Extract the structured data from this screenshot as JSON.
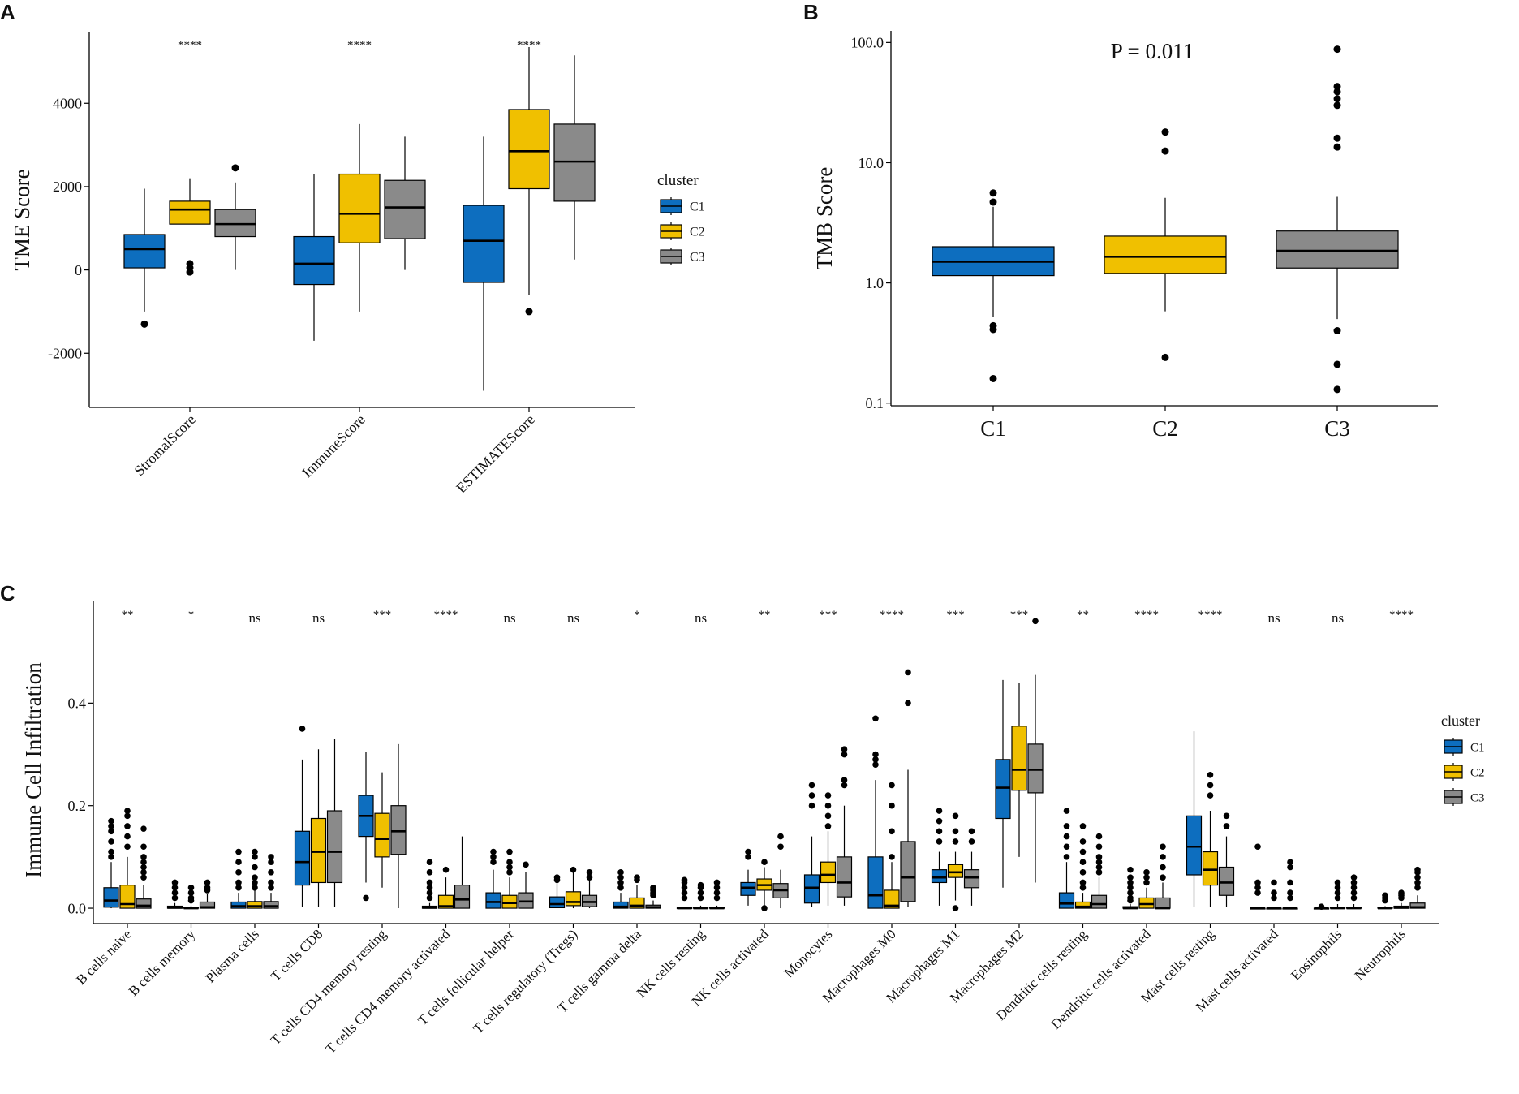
{
  "colors": {
    "C1": "#0d6ebf",
    "C2": "#f0c000",
    "C3": "#8a8a8a",
    "axis": "#000000"
  },
  "chart_data": [
    {
      "panel": "A",
      "type": "boxplot",
      "ylabel": "TME Score",
      "ylim": [
        -3300,
        5700
      ],
      "yticks": [
        -2000,
        0,
        2000,
        4000
      ],
      "ytick_labels": [
        "-2000",
        "0",
        "2000",
        "4000"
      ],
      "categories": [
        "StromalScore",
        "ImmuneScore",
        "ESTIMATEScore"
      ],
      "significance": [
        "****",
        "****",
        "****"
      ],
      "legend": {
        "title": "cluster",
        "entries": [
          "C1",
          "C2",
          "C3"
        ]
      },
      "groups": [
        [
          {
            "series": "C1",
            "whisker_low": -1000,
            "q1": 50,
            "median": 500,
            "q3": 850,
            "whisker_high": 1950,
            "outliers": [
              -1300
            ]
          },
          {
            "series": "C2",
            "whisker_low": 1100,
            "q1": 1100,
            "median": 1450,
            "q3": 1650,
            "whisker_high": 2200,
            "outliers": [
              150,
              50,
              -50
            ]
          },
          {
            "series": "C3",
            "whisker_low": 0,
            "q1": 800,
            "median": 1100,
            "q3": 1450,
            "whisker_high": 2100,
            "outliers": [
              2450
            ]
          }
        ],
        [
          {
            "series": "C1",
            "whisker_low": -1700,
            "q1": -350,
            "median": 150,
            "q3": 800,
            "whisker_high": 2300,
            "outliers": []
          },
          {
            "series": "C2",
            "whisker_low": -1000,
            "q1": 650,
            "median": 1350,
            "q3": 2300,
            "whisker_high": 3500,
            "outliers": []
          },
          {
            "series": "C3",
            "whisker_low": 0,
            "q1": 750,
            "median": 1500,
            "q3": 2150,
            "whisker_high": 3200,
            "outliers": []
          }
        ],
        [
          {
            "series": "C1",
            "whisker_low": -2900,
            "q1": -300,
            "median": 700,
            "q3": 1550,
            "whisker_high": 3200,
            "outliers": []
          },
          {
            "series": "C2",
            "whisker_low": -600,
            "q1": 1950,
            "median": 2850,
            "q3": 3850,
            "whisker_high": 5350,
            "outliers": [
              -1000
            ]
          },
          {
            "series": "C3",
            "whisker_low": 250,
            "q1": 1650,
            "median": 2600,
            "q3": 3500,
            "whisker_high": 5150,
            "outliers": []
          }
        ]
      ]
    },
    {
      "panel": "B",
      "type": "boxplot",
      "yscale": "log",
      "ylabel": "TMB Score",
      "ylim": [
        0.095,
        125
      ],
      "yticks": [
        0.1,
        1.0,
        10.0,
        100.0
      ],
      "ytick_labels": [
        "0.1",
        "1.0",
        "10.0",
        "100.0"
      ],
      "categories": [
        "C1",
        "C2",
        "C3"
      ],
      "annotation": "P = 0.011",
      "boxes": [
        {
          "series": "C1",
          "whisker_low": 0.52,
          "q1": 1.15,
          "median": 1.5,
          "q3": 2.0,
          "whisker_high": 4.3,
          "outliers": [
            5.6,
            4.7,
            0.44,
            0.41,
            0.16
          ]
        },
        {
          "series": "C2",
          "whisker_low": 0.58,
          "q1": 1.2,
          "median": 1.65,
          "q3": 2.45,
          "whisker_high": 5.1,
          "outliers": [
            18,
            12.5,
            0.24
          ]
        },
        {
          "series": "C3",
          "whisker_low": 0.5,
          "q1": 1.33,
          "median": 1.85,
          "q3": 2.7,
          "whisker_high": 5.2,
          "outliers": [
            88,
            43,
            39,
            34,
            30,
            16,
            13.5,
            0.4,
            0.21,
            0.13
          ]
        }
      ]
    },
    {
      "panel": "C",
      "type": "boxplot",
      "ylabel": "Immune Cell Infiltration",
      "ylim": [
        -0.03,
        0.6
      ],
      "yticks": [
        0.0,
        0.2,
        0.4
      ],
      "ytick_labels": [
        "0.0",
        "0.2",
        "0.4"
      ],
      "categories": [
        "B cells naive",
        "B cells memory",
        "Plasma cells",
        "T cells CD8",
        "T cells CD4 memory resting",
        "T cells CD4 memory activated",
        "T cells follicular helper",
        "T cells regulatory (Tregs)",
        "T cells gamma delta",
        "NK cells resting",
        "NK cells activated",
        "Monocytes",
        "Macrophages M0",
        "Macrophages M1",
        "Macrophages M2",
        "Dendritic cells resting",
        "Dendritic cells activated",
        "Mast cells resting",
        "Mast cells activated",
        "Eosinophils",
        "Neutrophils"
      ],
      "significance": [
        "**",
        "*",
        "ns",
        "ns",
        "***",
        "****",
        "ns",
        "ns",
        "*",
        "ns",
        "**",
        "***",
        "****",
        "***",
        "***",
        "**",
        "****",
        "****",
        "ns",
        "ns",
        "****"
      ],
      "legend": {
        "title": "cluster",
        "entries": [
          "C1",
          "C2",
          "C3"
        ]
      },
      "groups": [
        [
          [
            0,
            0.002,
            0.015,
            0.04,
            0.09,
            [
              0.17,
              0.16,
              0.15,
              0.13,
              0.11,
              0.1
            ]
          ],
          [
            0,
            0,
            0.008,
            0.045,
            0.1,
            [
              0.19,
              0.18,
              0.16,
              0.14,
              0.12
            ]
          ],
          [
            0,
            0,
            0.005,
            0.018,
            0.045,
            [
              0.155,
              0.12,
              0.1,
              0.09,
              0.08,
              0.07,
              0.06
            ]
          ]
        ],
        [
          [
            0,
            0,
            0.001,
            0.004,
            0.01,
            [
              0.05,
              0.04,
              0.03,
              0.02
            ]
          ],
          [
            0,
            0,
            0,
            0.002,
            0.005,
            [
              0.04,
              0.03,
              0.02,
              0.015
            ]
          ],
          [
            0,
            0,
            0.002,
            0.012,
            0.028,
            [
              0.05,
              0.04,
              0.035
            ]
          ]
        ],
        [
          [
            0,
            0,
            0.004,
            0.012,
            0.03,
            [
              0.11,
              0.09,
              0.07,
              0.05,
              0.04
            ]
          ],
          [
            0,
            0,
            0.004,
            0.013,
            0.035,
            [
              0.11,
              0.1,
              0.08,
              0.06,
              0.05,
              0.04
            ]
          ],
          [
            0,
            0,
            0.004,
            0.013,
            0.03,
            [
              0.1,
              0.09,
              0.07,
              0.05,
              0.04
            ]
          ]
        ],
        [
          [
            0.002,
            0.045,
            0.09,
            0.15,
            0.29,
            [
              0.35
            ]
          ],
          [
            0.002,
            0.05,
            0.11,
            0.175,
            0.31,
            []
          ],
          [
            0.002,
            0.05,
            0.11,
            0.19,
            0.33,
            []
          ]
        ],
        [
          [
            0.05,
            0.14,
            0.18,
            0.22,
            0.305,
            [
              0.02
            ]
          ],
          [
            0.04,
            0.1,
            0.135,
            0.185,
            0.265,
            []
          ],
          [
            0,
            0.105,
            0.15,
            0.2,
            0.32,
            []
          ]
        ],
        [
          [
            0,
            0,
            0.001,
            0.004,
            0.01,
            [
              0.09,
              0.07,
              0.05,
              0.04,
              0.03,
              0.02
            ]
          ],
          [
            0,
            0,
            0.004,
            0.025,
            0.06,
            [
              0.075
            ]
          ],
          [
            0,
            0,
            0.017,
            0.045,
            0.14,
            []
          ]
        ],
        [
          [
            0,
            0,
            0.012,
            0.03,
            0.075,
            [
              0.11,
              0.1,
              0.09
            ]
          ],
          [
            0,
            0,
            0.01,
            0.025,
            0.06,
            [
              0.11,
              0.09,
              0.08,
              0.07
            ]
          ],
          [
            0,
            0,
            0.013,
            0.03,
            0.07,
            [
              0.085
            ]
          ]
        ],
        [
          [
            0,
            0.001,
            0.008,
            0.022,
            0.05,
            [
              0.06,
              0.055
            ]
          ],
          [
            0,
            0.005,
            0.012,
            0.032,
            0.07,
            [
              0.075
            ]
          ],
          [
            0,
            0.003,
            0.012,
            0.025,
            0.055,
            [
              0.06,
              0.07
            ]
          ]
        ],
        [
          [
            0,
            0,
            0.003,
            0.012,
            0.03,
            [
              0.07,
              0.06,
              0.05,
              0.04
            ]
          ],
          [
            0,
            0,
            0.005,
            0.02,
            0.045,
            [
              0.06,
              0.055
            ]
          ],
          [
            0,
            0,
            0.002,
            0.006,
            0.015,
            [
              0.04,
              0.035,
              0.03,
              0.025
            ]
          ]
        ],
        [
          [
            0,
            0,
            0,
            0.001,
            0.003,
            [
              0.055,
              0.05,
              0.04,
              0.03,
              0.02
            ]
          ],
          [
            0,
            0,
            0,
            0.002,
            0.005,
            [
              0.045,
              0.04,
              0.03,
              0.02
            ]
          ],
          [
            0,
            0,
            0,
            0.002,
            0.005,
            [
              0.05,
              0.04,
              0.03,
              0.02
            ]
          ]
        ],
        [
          [
            0.005,
            0.025,
            0.04,
            0.05,
            0.075,
            [
              0.11,
              0.1
            ]
          ],
          [
            0.002,
            0.035,
            0.045,
            0.057,
            0.08,
            [
              0.09,
              0.0
            ]
          ],
          [
            0,
            0.02,
            0.035,
            0.048,
            0.075,
            [
              0.14,
              0.12
            ]
          ]
        ],
        [
          [
            0.002,
            0.01,
            0.04,
            0.065,
            0.14,
            [
              0.24,
              0.22,
              0.2
            ]
          ],
          [
            0.005,
            0.05,
            0.065,
            0.09,
            0.15,
            [
              0.22,
              0.2,
              0.18,
              0.16
            ]
          ],
          [
            0.005,
            0.022,
            0.05,
            0.1,
            0.2,
            [
              0.31,
              0.3,
              0.25,
              0.24
            ]
          ]
        ],
        [
          [
            0,
            0,
            0.025,
            0.1,
            0.25,
            [
              0.37,
              0.3,
              0.29,
              0.28
            ]
          ],
          [
            0,
            0,
            0.005,
            0.035,
            0.09,
            [
              0.24,
              0.2,
              0.15,
              0.1
            ]
          ],
          [
            0.003,
            0.013,
            0.06,
            0.13,
            0.27,
            [
              0.46,
              0.4
            ]
          ]
        ],
        [
          [
            0.005,
            0.05,
            0.06,
            0.075,
            0.11,
            [
              0.19,
              0.17,
              0.15,
              0.13
            ]
          ],
          [
            0.015,
            0.06,
            0.07,
            0.085,
            0.11,
            [
              0.18,
              0.15,
              0.13,
              0.0
            ]
          ],
          [
            0.005,
            0.04,
            0.06,
            0.075,
            0.11,
            [
              0.15,
              0.13
            ]
          ]
        ],
        [
          [
            0.04,
            0.175,
            0.235,
            0.29,
            0.445,
            []
          ],
          [
            0.1,
            0.23,
            0.27,
            0.355,
            0.44,
            []
          ],
          [
            0.05,
            0.225,
            0.27,
            0.32,
            0.455,
            [
              0.56
            ]
          ]
        ],
        [
          [
            0,
            0,
            0.009,
            0.03,
            0.09,
            [
              0.19,
              0.16,
              0.14,
              0.12,
              0.1
            ]
          ],
          [
            0,
            0,
            0.003,
            0.012,
            0.03,
            [
              0.16,
              0.13,
              0.11,
              0.09,
              0.07,
              0.05,
              0.04
            ]
          ],
          [
            0,
            0,
            0.008,
            0.025,
            0.06,
            [
              0.14,
              0.12,
              0.1,
              0.09,
              0.08,
              0.07
            ]
          ]
        ],
        [
          [
            0,
            0,
            0,
            0.003,
            0.008,
            [
              0.075,
              0.06,
              0.05,
              0.04,
              0.03,
              0.02,
              0.015
            ]
          ],
          [
            0,
            0,
            0.008,
            0.02,
            0.04,
            [
              0.07,
              0.06,
              0.05
            ]
          ],
          [
            0,
            0,
            0,
            0.02,
            0.05,
            [
              0.12,
              0.1,
              0.08,
              0.06
            ]
          ]
        ],
        [
          [
            0.002,
            0.065,
            0.12,
            0.18,
            0.345,
            []
          ],
          [
            0.002,
            0.045,
            0.075,
            0.11,
            0.19,
            [
              0.26,
              0.24,
              0.22
            ]
          ],
          [
            0.002,
            0.025,
            0.05,
            0.08,
            0.14,
            [
              0.18,
              0.16
            ]
          ]
        ],
        [
          [
            0,
            0,
            0,
            0,
            0,
            [
              0.12,
              0.05,
              0.04,
              0.03
            ]
          ],
          [
            0,
            0,
            0,
            0,
            0,
            [
              0.05,
              0.03,
              0.02
            ]
          ],
          [
            0,
            0,
            0,
            0,
            0,
            [
              0.09,
              0.08,
              0.05,
              0.03,
              0.02
            ]
          ]
        ],
        [
          [
            0,
            0,
            0,
            0,
            0.002,
            [
              0.003
            ]
          ],
          [
            0,
            0,
            0,
            0.002,
            0.008,
            [
              0.05,
              0.04,
              0.03,
              0.02
            ]
          ],
          [
            0,
            0,
            0,
            0.002,
            0.008,
            [
              0.06,
              0.05,
              0.04,
              0.03,
              0.02
            ]
          ]
        ],
        [
          [
            0,
            0,
            0,
            0.002,
            0.004,
            [
              0.025,
              0.02,
              0.015
            ]
          ],
          [
            0,
            0,
            0.001,
            0.004,
            0.01,
            [
              0.03,
              0.025,
              0.02
            ]
          ],
          [
            0,
            0,
            0.002,
            0.01,
            0.025,
            [
              0.075,
              0.07,
              0.06,
              0.05,
              0.04
            ]
          ]
        ]
      ]
    }
  ]
}
